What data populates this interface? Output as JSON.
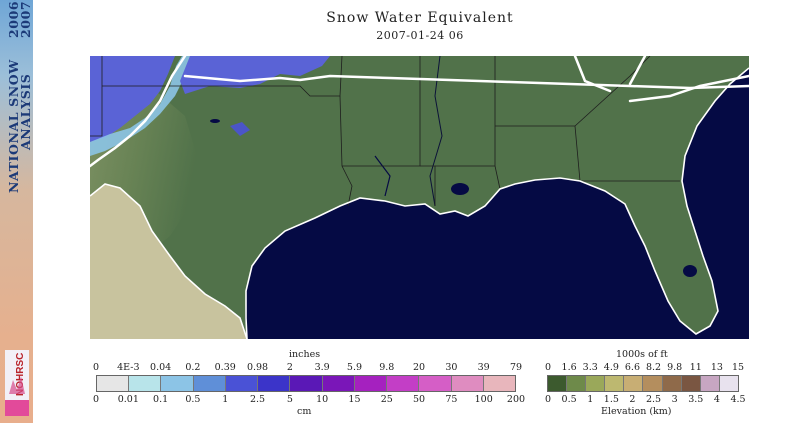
{
  "sidebar": {
    "line1": "NATIONAL SNOW",
    "line1b": "ANALYSIS",
    "line2": "2006-",
    "line2b": "2007",
    "logo_text": "NOHRSC"
  },
  "header": {
    "title": "Snow Water Equivalent",
    "subtitle": "2007-01-24 06"
  },
  "colors": {
    "ocean": "#050a44",
    "land": "#51724a",
    "snow": "#5a63d6",
    "mexico": "#c8c39e"
  },
  "snow_legend": {
    "top_unit": "inches",
    "bottom_unit": "cm",
    "inch_ticks": [
      "0",
      "4E-3",
      "0.04",
      "0.2",
      "0.39",
      "0.98",
      "2",
      "3.9",
      "5.9",
      "9.8",
      "20",
      "30",
      "39",
      "79"
    ],
    "cm_ticks": [
      "0",
      "0.01",
      "0.1",
      "0.5",
      "1",
      "2.5",
      "5",
      "10",
      "15",
      "25",
      "50",
      "75",
      "100",
      "200"
    ],
    "colors": [
      "#e6e6e6",
      "#b8e4ea",
      "#8cc4e6",
      "#5f8fd8",
      "#4a52d6",
      "#3b34c9",
      "#5a18b6",
      "#7a16b8",
      "#a521bf",
      "#c33ec6",
      "#d55ec6",
      "#df8cc0",
      "#e8b6bc"
    ]
  },
  "elev_legend": {
    "top_unit": "1000s of ft",
    "bottom_unit": "Elevation (km)",
    "ft_ticks": [
      "0",
      "1.6",
      "3.3",
      "4.9",
      "6.6",
      "8.2",
      "9.8",
      "11",
      "13",
      "15"
    ],
    "km_ticks": [
      "0",
      "0.5",
      "1",
      "1.5",
      "2",
      "2.5",
      "3",
      "3.5",
      "4",
      "4.5"
    ],
    "colors": [
      "#3c5a2e",
      "#6e8a4a",
      "#9aa85a",
      "#bdb870",
      "#c8ae74",
      "#b48e5e",
      "#8f6a4a",
      "#7a5642",
      "#c7a6c2",
      "#e8e2ee"
    ]
  }
}
